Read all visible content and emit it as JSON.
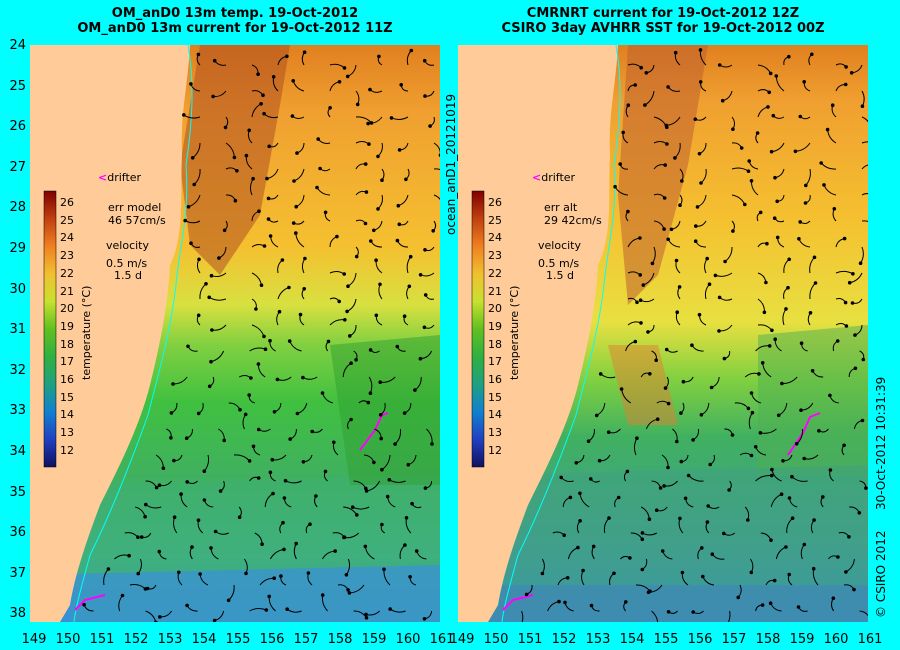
{
  "left_panel": {
    "title_line1": "OM_anD0 13m temp. 19-Oct-2012",
    "title_line2": "OM_anD0 13m current for 19-Oct-2012 11Z",
    "err_label": "err model",
    "err_value": "46 57cm/s",
    "velocity_label": "velocity",
    "velocity_scale": "0.5 m/s",
    "velocity_time": "1.5 d",
    "drifter_label": "drifter"
  },
  "right_panel": {
    "title_line1": "CMRNRT current for 19-Oct-2012 12Z",
    "title_line2": "CSIRO 3day AVHRR SST for 19-Oct-2012 00Z",
    "err_label": "err alt",
    "err_value": "29 42cm/s",
    "velocity_label": "velocity",
    "velocity_scale": "0.5 m/s",
    "velocity_time": "1.5 d",
    "drifter_label": "drifter"
  },
  "colorbar": {
    "label": "temperature (°C)",
    "ticks": [
      "26",
      "25",
      "24",
      "23",
      "22",
      "21",
      "20",
      "19",
      "18",
      "17",
      "16",
      "15",
      "14",
      "13",
      "12"
    ]
  },
  "axes": {
    "lat_ticks": [
      "24",
      "25",
      "26",
      "27",
      "28",
      "29",
      "30",
      "31",
      "32",
      "33",
      "34",
      "35",
      "36",
      "37",
      "38"
    ],
    "lon_ticks": [
      "149",
      "150",
      "151",
      "152",
      "153",
      "154",
      "155",
      "156",
      "157",
      "158",
      "159",
      "160",
      "161"
    ]
  },
  "side_labels": {
    "run_id": "ocean_anD1_20121019",
    "date_stamp": "30-Oct-2012 10:31:39",
    "copyright": "© CSIRO 2012"
  },
  "colors": {
    "background": "#00ffff",
    "land": "#ffcc99",
    "drifter": "#ff00ff",
    "coast_line": "#00ffff"
  }
}
